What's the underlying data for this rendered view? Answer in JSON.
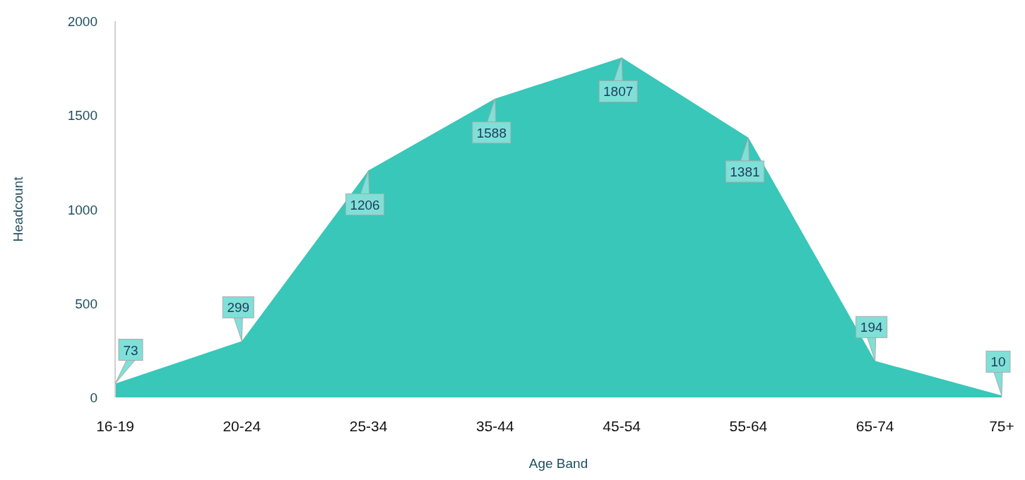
{
  "chart_data": {
    "type": "area",
    "xlabel": "Age Band",
    "ylabel": "Headcount",
    "categories": [
      "16-19",
      "20-24",
      "25-34",
      "35-44",
      "45-54",
      "55-64",
      "65-74",
      "75+"
    ],
    "values": [
      73,
      299,
      1206,
      1588,
      1807,
      1381,
      194,
      10
    ],
    "color": "#38c7b9",
    "ylim": [
      0,
      2000
    ],
    "yticks": [
      0,
      500,
      1000,
      1500,
      2000
    ],
    "grid": false,
    "data_labels": true
  }
}
